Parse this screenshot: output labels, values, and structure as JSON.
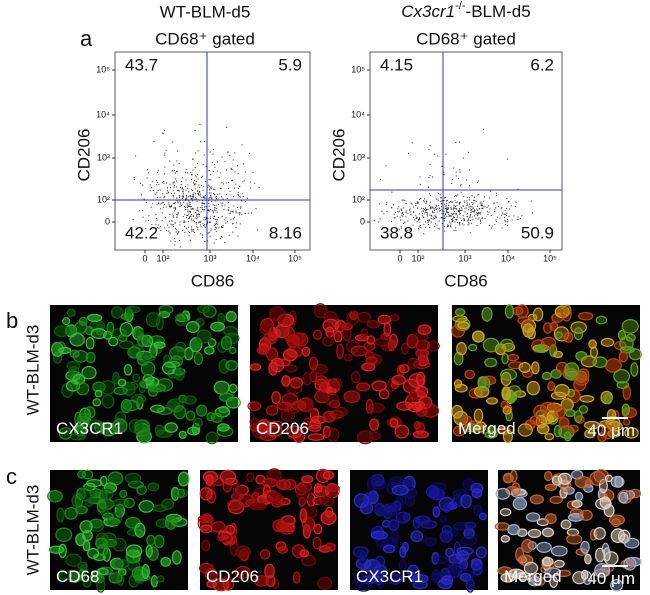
{
  "panel_a": {
    "label": "a",
    "plots": [
      {
        "title": "WT-BLM-d5",
        "subtitle": "CD68⁺ gated",
        "y_label": "CD206",
        "x_label": "CD86",
        "y_ticks": [
          "10⁵",
          "10⁴",
          "10³",
          "10²",
          "0"
        ],
        "x_ticks": [
          "0",
          "10²",
          "10³",
          "10⁴",
          "10⁵"
        ],
        "quadrants": {
          "upper_left": 43.7,
          "upper_right": 5.9,
          "lower_left": 42.2,
          "lower_right": 8.16
        }
      },
      {
        "title_parts": {
          "gene": "Cx3cr1",
          "superscript": "-/-",
          "suffix": "-BLM-d5"
        },
        "subtitle": "CD68⁺ gated",
        "y_label": "CD206",
        "x_label": "CD86",
        "y_ticks": [
          "10⁵",
          "10⁴",
          "10³",
          "10²",
          "0"
        ],
        "x_ticks": [
          "0",
          "10²",
          "10³",
          "10⁴",
          "10⁵"
        ],
        "quadrants": {
          "upper_left": 4.15,
          "upper_right": 6.2,
          "lower_left": 38.8,
          "lower_right": 50.9
        }
      }
    ]
  },
  "panel_b": {
    "label": "b",
    "side_label": "WT-BLM-d3",
    "images": [
      {
        "label": "CX3CR1"
      },
      {
        "label": "CD206"
      },
      {
        "label": "Merged"
      }
    ],
    "scale_bar": "40 μm"
  },
  "panel_c": {
    "label": "c",
    "side_label": "WT-BLM-d3",
    "images": [
      {
        "label": "CD68"
      },
      {
        "label": "CD206"
      },
      {
        "label": "CX3CR1"
      },
      {
        "label": "Merged"
      }
    ],
    "scale_bar": "40 μm"
  }
}
